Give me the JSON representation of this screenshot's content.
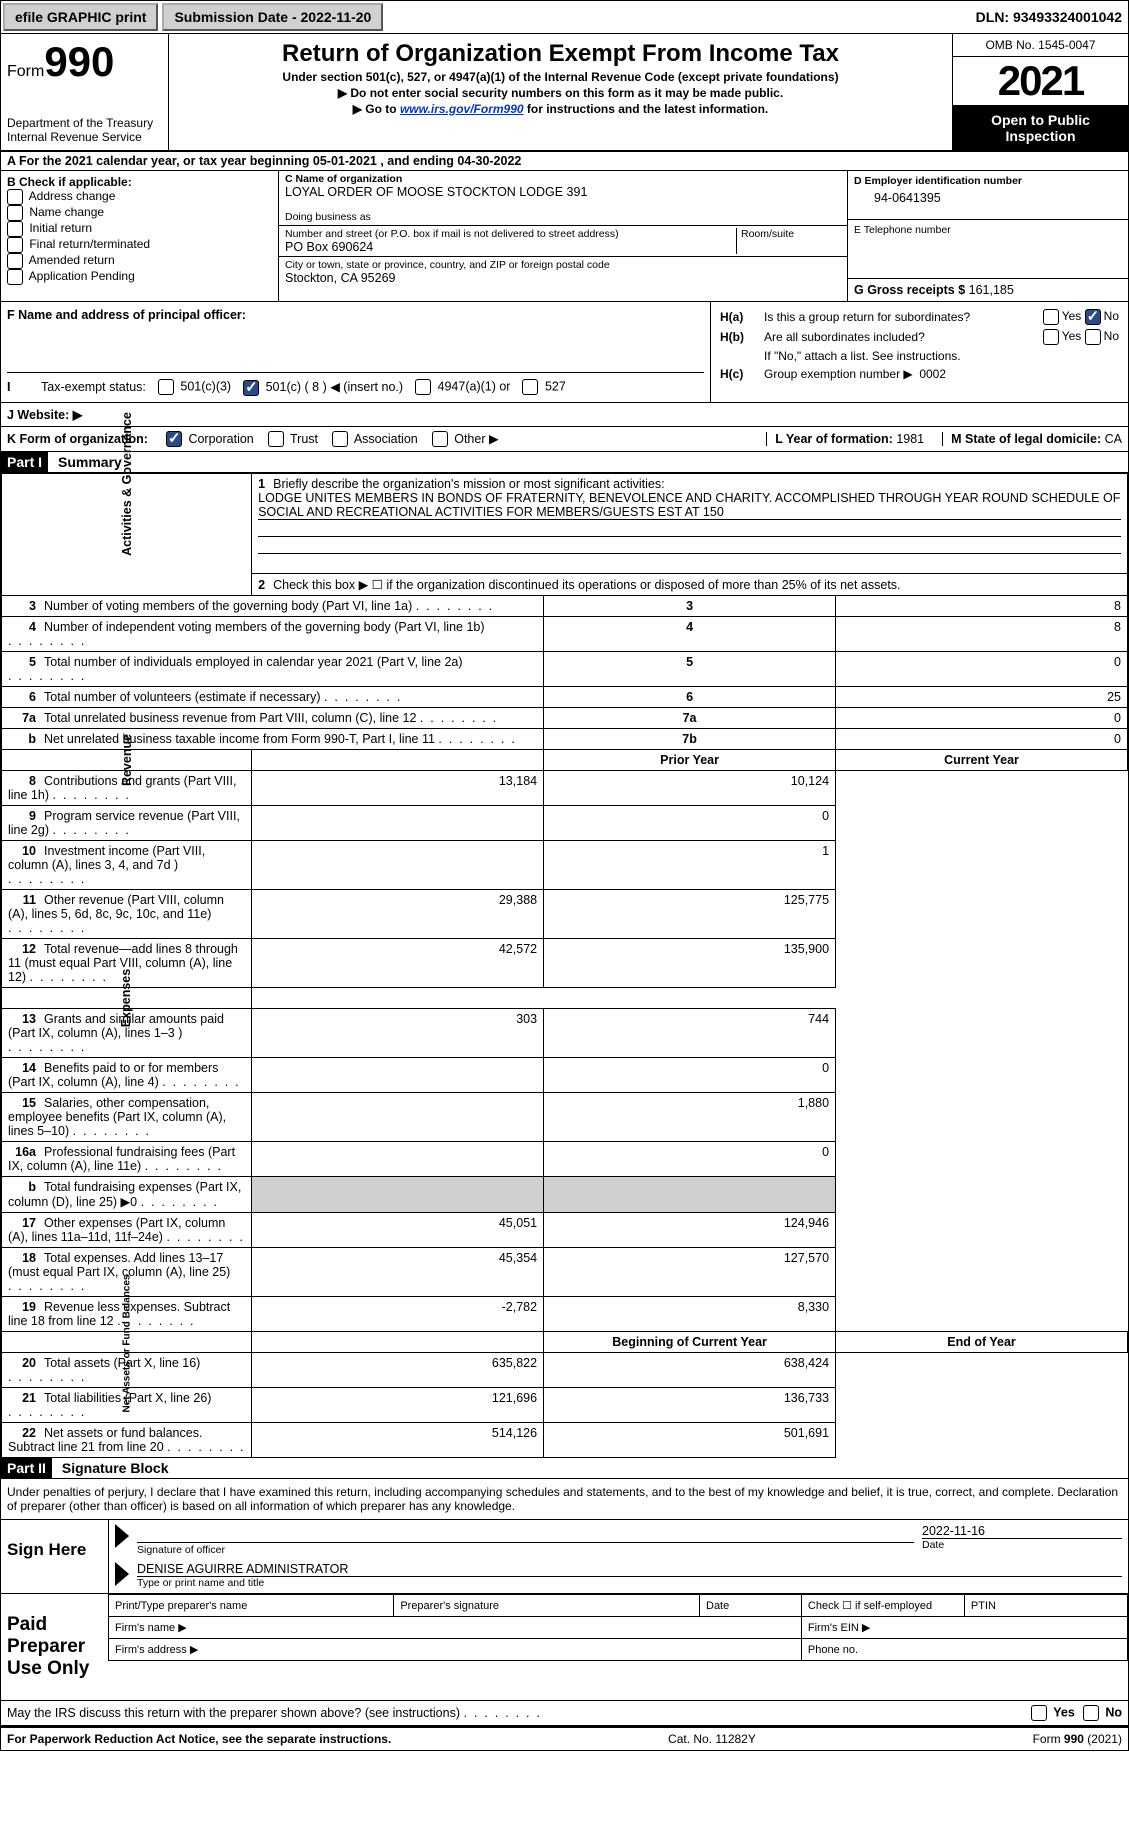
{
  "topbar": {
    "efile": "efile GRAPHIC print",
    "submission_label": "Submission Date - ",
    "submission_date": "2022-11-20",
    "dln_label": "DLN: ",
    "dln": "93493324001042"
  },
  "header": {
    "form_prefix": "Form",
    "form_number": "990",
    "dept": "Department of the Treasury",
    "irs": "Internal Revenue Service",
    "title": "Return of Organization Exempt From Income Tax",
    "sub1": "Under section 501(c), 527, or 4947(a)(1) of the Internal Revenue Code (except private foundations)",
    "sub2": "Do not enter social security numbers on this form as it may be made public.",
    "sub3_pre": "Go to ",
    "sub3_link": "www.irs.gov/Form990",
    "sub3_post": " for instructions and the latest information.",
    "omb": "OMB No. 1545-0047",
    "year": "2021",
    "inspect": "Open to Public Inspection"
  },
  "period": {
    "text_pre": "A For the 2021 calendar year, or tax year beginning ",
    "begin": "05-01-2021",
    "text_mid": " , and ending ",
    "end": "04-30-2022"
  },
  "section_b": {
    "label": "B Check if applicable:",
    "opts": [
      "Address change",
      "Name change",
      "Initial return",
      "Final return/terminated",
      "Amended return",
      "Application Pending"
    ]
  },
  "section_c": {
    "name_label": "C Name of organization",
    "name": "LOYAL ORDER OF MOOSE STOCKTON LODGE 391",
    "dba_label": "Doing business as",
    "street_label": "Number and street (or P.O. box if mail is not delivered to street address)",
    "room_label": "Room/suite",
    "street": "PO Box 690624",
    "city_label": "City or town, state or province, country, and ZIP or foreign postal code",
    "city": "Stockton, CA  95269"
  },
  "section_d": {
    "ein_label": "D Employer identification number",
    "ein": "94-0641395",
    "tel_label": "E Telephone number",
    "gross_label": "G Gross receipts $ ",
    "gross": "161,185"
  },
  "section_f": {
    "label": "F Name and address of principal officer:"
  },
  "section_h": {
    "a_label": "Is this a group return for subordinates?",
    "b_label": "Are all subordinates included?",
    "b_note": "If \"No,\" attach a list. See instructions.",
    "c_label": "Group exemption number ▶",
    "c_val": "0002",
    "yes": "Yes",
    "no": "No"
  },
  "tax_exempt": {
    "label": "Tax-exempt status:",
    "opt1": "501(c)(3)",
    "opt2_pre": "501(c) ( ",
    "opt2_val": "8",
    "opt2_post": " ) ◀ (insert no.)",
    "opt3": "4947(a)(1) or",
    "opt4": "527"
  },
  "website": {
    "label": "J   Website: ▶"
  },
  "k_row": {
    "label": "K Form of organization:",
    "opts": [
      "Corporation",
      "Trust",
      "Association",
      "Other ▶"
    ],
    "checked": 0,
    "l_label": "L Year of formation: ",
    "l_val": "1981",
    "m_label": "M State of legal domicile: ",
    "m_val": "CA"
  },
  "part1": {
    "header": "Part I",
    "title": "Summary"
  },
  "mission": {
    "num": "1",
    "label": "Briefly describe the organization's mission or most significant activities:",
    "text": "LODGE UNITES MEMBERS IN BONDS OF FRATERNITY, BENEVOLENCE AND CHARITY. ACCOMPLISHED THROUGH YEAR ROUND SCHEDULE OF SOCIAL AND RECREATIONAL ACTIVITIES FOR MEMBERS/GUESTS EST AT 150"
  },
  "line2": {
    "num": "2",
    "text": "Check this box ▶ ☐ if the organization discontinued its operations or disposed of more than 25% of its net assets."
  },
  "sidebars": {
    "gov": "Activities & Governance",
    "rev": "Revenue",
    "exp": "Expenses",
    "net": "Net Assets or Fund Balances"
  },
  "gov_rows": [
    {
      "num": "3",
      "text": "Number of voting members of the governing body (Part VI, line 1a)",
      "box": "3",
      "val": "8"
    },
    {
      "num": "4",
      "text": "Number of independent voting members of the governing body (Part VI, line 1b)",
      "box": "4",
      "val": "8"
    },
    {
      "num": "5",
      "text": "Total number of individuals employed in calendar year 2021 (Part V, line 2a)",
      "box": "5",
      "val": "0"
    },
    {
      "num": "6",
      "text": "Total number of volunteers (estimate if necessary)",
      "box": "6",
      "val": "25"
    },
    {
      "num": "7a",
      "text": "Total unrelated business revenue from Part VIII, column (C), line 12",
      "box": "7a",
      "val": "0"
    },
    {
      "num": "b",
      "text": "Net unrelated business taxable income from Form 990-T, Part I, line 11",
      "box": "7b",
      "val": "0"
    }
  ],
  "year_headers": {
    "prior": "Prior Year",
    "current": "Current Year"
  },
  "rev_rows": [
    {
      "num": "8",
      "text": "Contributions and grants (Part VIII, line 1h)",
      "prior": "13,184",
      "current": "10,124"
    },
    {
      "num": "9",
      "text": "Program service revenue (Part VIII, line 2g)",
      "prior": "",
      "current": "0"
    },
    {
      "num": "10",
      "text": "Investment income (Part VIII, column (A), lines 3, 4, and 7d )",
      "prior": "",
      "current": "1"
    },
    {
      "num": "11",
      "text": "Other revenue (Part VIII, column (A), lines 5, 6d, 8c, 9c, 10c, and 11e)",
      "prior": "29,388",
      "current": "125,775"
    },
    {
      "num": "12",
      "text": "Total revenue—add lines 8 through 11 (must equal Part VIII, column (A), line 12)",
      "prior": "42,572",
      "current": "135,900"
    }
  ],
  "exp_rows": [
    {
      "num": "13",
      "text": "Grants and similar amounts paid (Part IX, column (A), lines 1–3 )",
      "prior": "303",
      "current": "744"
    },
    {
      "num": "14",
      "text": "Benefits paid to or for members (Part IX, column (A), line 4)",
      "prior": "",
      "current": "0"
    },
    {
      "num": "15",
      "text": "Salaries, other compensation, employee benefits (Part IX, column (A), lines 5–10)",
      "prior": "",
      "current": "1,880"
    },
    {
      "num": "16a",
      "text": "Professional fundraising fees (Part IX, column (A), line 11e)",
      "prior": "",
      "current": "0"
    },
    {
      "num": "b",
      "text": "Total fundraising expenses (Part IX, column (D), line 25) ▶0",
      "prior": "GRAY",
      "current": "GRAY"
    },
    {
      "num": "17",
      "text": "Other expenses (Part IX, column (A), lines 11a–11d, 11f–24e)",
      "prior": "45,051",
      "current": "124,946"
    },
    {
      "num": "18",
      "text": "Total expenses. Add lines 13–17 (must equal Part IX, column (A), line 25)",
      "prior": "45,354",
      "current": "127,570"
    },
    {
      "num": "19",
      "text": "Revenue less expenses. Subtract line 18 from line 12",
      "prior": "-2,782",
      "current": "8,330"
    }
  ],
  "net_headers": {
    "begin": "Beginning of Current Year",
    "end": "End of Year"
  },
  "net_rows": [
    {
      "num": "20",
      "text": "Total assets (Part X, line 16)",
      "prior": "635,822",
      "current": "638,424"
    },
    {
      "num": "21",
      "text": "Total liabilities (Part X, line 26)",
      "prior": "121,696",
      "current": "136,733"
    },
    {
      "num": "22",
      "text": "Net assets or fund balances. Subtract line 21 from line 20",
      "prior": "514,126",
      "current": "501,691"
    }
  ],
  "part2": {
    "header": "Part II",
    "title": "Signature Block",
    "penalty": "Under penalties of perjury, I declare that I have examined this return, including accompanying schedules and statements, and to the best of my knowledge and belief, it is true, correct, and complete. Declaration of preparer (other than officer) is based on all information of which preparer has any knowledge."
  },
  "sign": {
    "label": "Sign Here",
    "sig_label": "Signature of officer",
    "date_label": "Date",
    "date": "2022-11-16",
    "name": "DENISE AGUIRRE  ADMINISTRATOR",
    "name_label": "Type or print name and title"
  },
  "paid": {
    "label": "Paid Preparer Use Only",
    "r1c1": "Print/Type preparer's name",
    "r1c2": "Preparer's signature",
    "r1c3": "Date",
    "r1c4_pre": "Check ☐ if self-employed",
    "r1c5": "PTIN",
    "r2c1": "Firm's name   ▶",
    "r2c2": "Firm's EIN ▶",
    "r3c1": "Firm's address ▶",
    "r3c2": "Phone no."
  },
  "discuss": {
    "text": "May the IRS discuss this return with the preparer shown above? (see instructions)",
    "yes": "Yes",
    "no": "No"
  },
  "footer": {
    "left": "For Paperwork Reduction Act Notice, see the separate instructions.",
    "mid": "Cat. No. 11282Y",
    "right": "Form 990 (2021)"
  }
}
